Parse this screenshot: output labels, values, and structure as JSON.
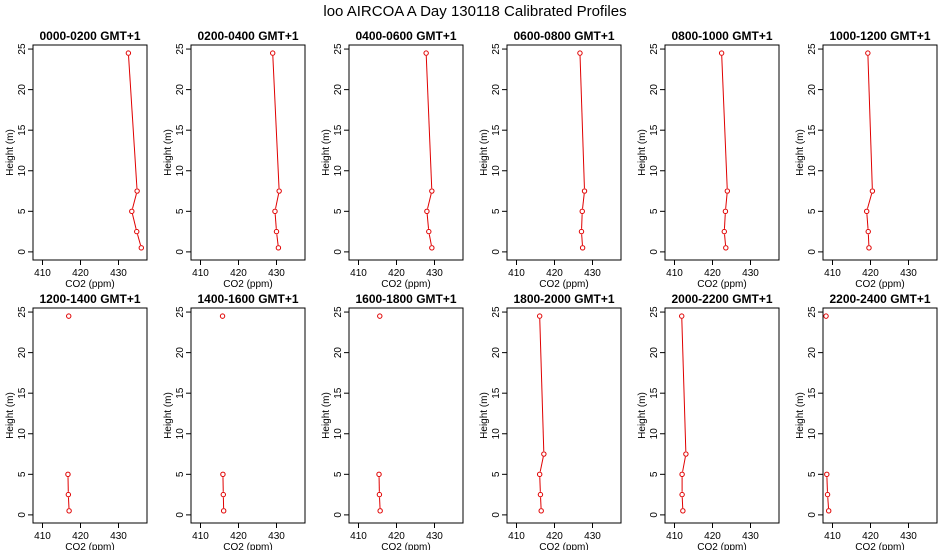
{
  "title": "loo AIRCOA A  Day 130118  Calibrated Profiles",
  "colors": {
    "series": "#e00000",
    "frame": "#000000",
    "background": "#ffffff"
  },
  "chart_data": {
    "type": "line",
    "xlabel": "CO2 (ppm)",
    "ylabel": "Height (m)",
    "xlim": [
      407.5,
      437.5
    ],
    "ylim": [
      -1,
      25.5
    ],
    "x_ticks": [
      410,
      420,
      430
    ],
    "y_ticks": [
      0,
      5,
      10,
      15,
      20,
      25
    ],
    "grid": false,
    "heights": [
      0.5,
      2.5,
      5,
      7.5,
      24.5
    ],
    "panels": [
      {
        "title": "0000-0200 GMT+1",
        "co2": [
          436.0,
          434.8,
          433.5,
          434.9,
          432.6
        ]
      },
      {
        "title": "0200-0400 GMT+1",
        "co2": [
          430.5,
          430.0,
          429.6,
          430.7,
          429.0
        ]
      },
      {
        "title": "0400-0600 GMT+1",
        "co2": [
          429.3,
          428.5,
          428.0,
          429.3,
          427.8
        ]
      },
      {
        "title": "0600-0800 GMT+1",
        "co2": [
          427.4,
          427.1,
          427.3,
          427.9,
          426.7
        ]
      },
      {
        "title": "0800-1000 GMT+1",
        "co2": [
          423.5,
          423.1,
          423.4,
          423.9,
          422.4
        ]
      },
      {
        "title": "1000-1200 GMT+1",
        "co2": [
          419.6,
          419.4,
          419.0,
          420.5,
          419.3
        ]
      },
      {
        "title": "1200-1400 GMT+1",
        "co2": [
          417.0,
          416.8,
          416.7,
          null,
          416.9
        ]
      },
      {
        "title": "1400-1600 GMT+1",
        "co2": [
          416.1,
          416.0,
          415.9,
          null,
          415.8
        ]
      },
      {
        "title": "1600-1800 GMT+1",
        "co2": [
          415.7,
          415.5,
          415.4,
          null,
          415.6
        ]
      },
      {
        "title": "1800-2000 GMT+1",
        "co2": [
          416.5,
          416.3,
          416.1,
          417.2,
          416.1
        ]
      },
      {
        "title": "2000-2200 GMT+1",
        "co2": [
          412.2,
          412.0,
          412.0,
          413.0,
          411.9
        ]
      },
      {
        "title": "2200-2400 GMT+1",
        "co2": [
          409.0,
          408.7,
          408.5,
          null,
          408.3
        ]
      }
    ]
  }
}
